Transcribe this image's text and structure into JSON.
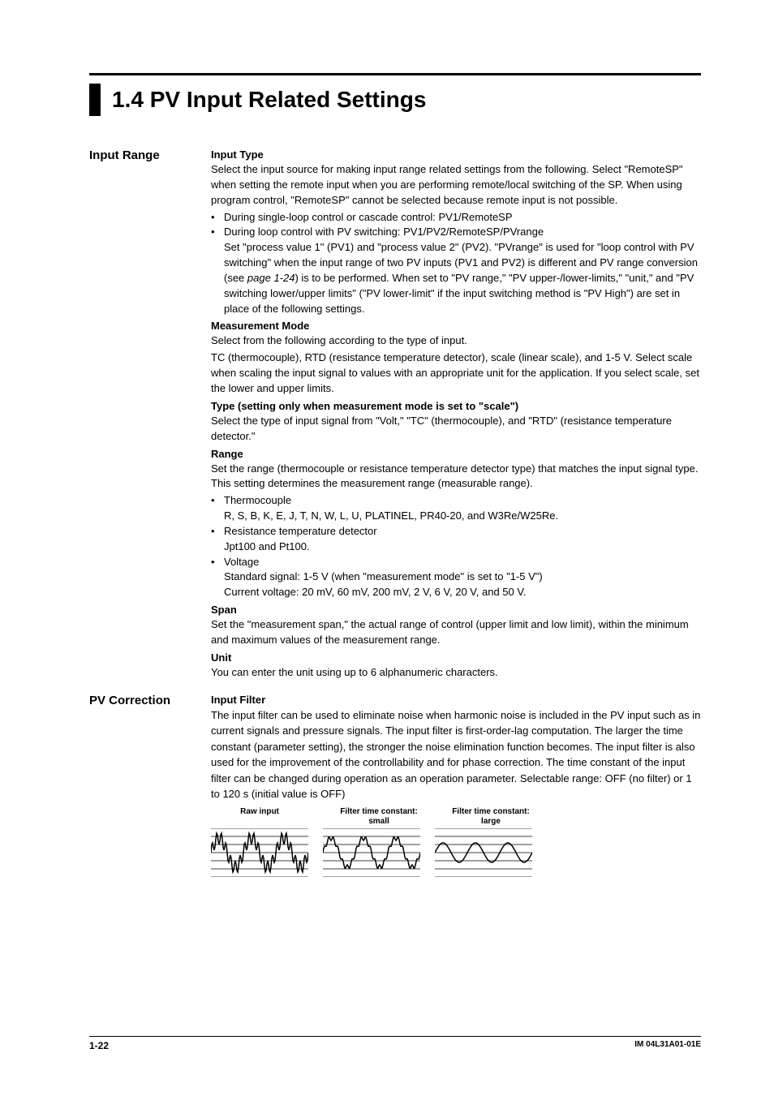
{
  "title": "1.4   PV Input Related Settings",
  "sections": {
    "input_range": {
      "heading": "Input Range",
      "input_type": {
        "heading": "Input Type",
        "p1": "Select the input source for making input range related settings from the following. Select \"RemoteSP\" when setting the remote input when you are performing remote/local switching of the SP.  When using program control, \"RemoteSP\" cannot be selected because remote input is not possible.",
        "b1": "During single-loop control or cascade control: PV1/RemoteSP",
        "b2": "During loop control with PV switching: PV1/PV2/RemoteSP/PVrange",
        "b2_cont_a": "Set \"process value 1\" (PV1) and \"process value 2\" (PV2).  \"PVrange\" is used for \"loop control with PV switching\" when the input range of two PV inputs (PV1 and PV2) is different and PV range conversion (see ",
        "b2_page_ref": "page 1-24",
        "b2_cont_b": ") is to be performed.  When set to \"PV range,\" \"PV upper-/lower-limits,\" \"unit,\" and \"PV switching lower/upper limits\" (\"PV lower-limit\" if the input switching method is \"PV High\") are set in place of the following settings."
      },
      "measurement_mode": {
        "heading": "Measurement Mode",
        "p1": "Select from the following according to the type of input.",
        "p2": "TC (thermocouple), RTD (resistance temperature detector), scale (linear scale), and 1-5 V. Select scale when scaling the input signal to values with an appropriate unit for the application.  If you select scale, set the lower and upper limits."
      },
      "type": {
        "heading": "Type (setting only when measurement mode is set to \"scale\")",
        "p1": "Select the type of input signal from \"Volt,\" \"TC\" (thermocouple), and \"RTD\" (resistance temperature detector.\""
      },
      "range": {
        "heading": "Range",
        "p1": "Set the range (thermocouple or resistance temperature detector type) that matches the input signal type.  This setting determines the measurement range (measurable range).",
        "b1": "Thermocouple",
        "b1_sub": "R, S, B, K, E, J, T, N, W, L, U, PLATINEL, PR40-20, and W3Re/W25Re.",
        "b2": "Resistance temperature detector",
        "b2_sub": "Jpt100 and Pt100.",
        "b3": "Voltage",
        "b3_sub1": "Standard signal: 1-5 V (when \"measurement mode\" is set to \"1-5 V\")",
        "b3_sub2": "Current voltage: 20 mV, 60 mV, 200 mV, 2 V, 6 V, 20 V, and 50 V."
      },
      "span": {
        "heading": "Span",
        "p1": "Set the \"measurement span,\" the actual range of control (upper limit and low limit), within the minimum and maximum values of the measurement range."
      },
      "unit": {
        "heading": "Unit",
        "p1": "You can enter the unit using up to 6 alphanumeric characters."
      }
    },
    "pv_correction": {
      "heading": "PV Correction",
      "input_filter": {
        "heading": "Input Filter",
        "p1": "The input filter can be used to eliminate noise when harmonic noise is included in the PV input such as in current signals and pressure signals.  The input filter is first-order-lag computation. The larger the time constant (parameter setting), the stronger the noise elimination function becomes. The input filter is also used for the improvement of the controllability and for phase correction. The time constant of the input filter can be changed during operation as an operation parameter. Selectable range: OFF (no filter) or 1 to 120 s (initial value is OFF)"
      }
    }
  },
  "diagrams": {
    "raw_label": "Raw input",
    "small_label_1": "Filter time constant:",
    "small_label_2": "small",
    "large_label_1": "Filter time constant:",
    "large_label_2": "large",
    "grid_color": "#000000",
    "width": 120,
    "height": 60,
    "hlines": 6
  },
  "footer": {
    "page": "1-22",
    "doc_id": "IM 04L31A01-01E"
  }
}
